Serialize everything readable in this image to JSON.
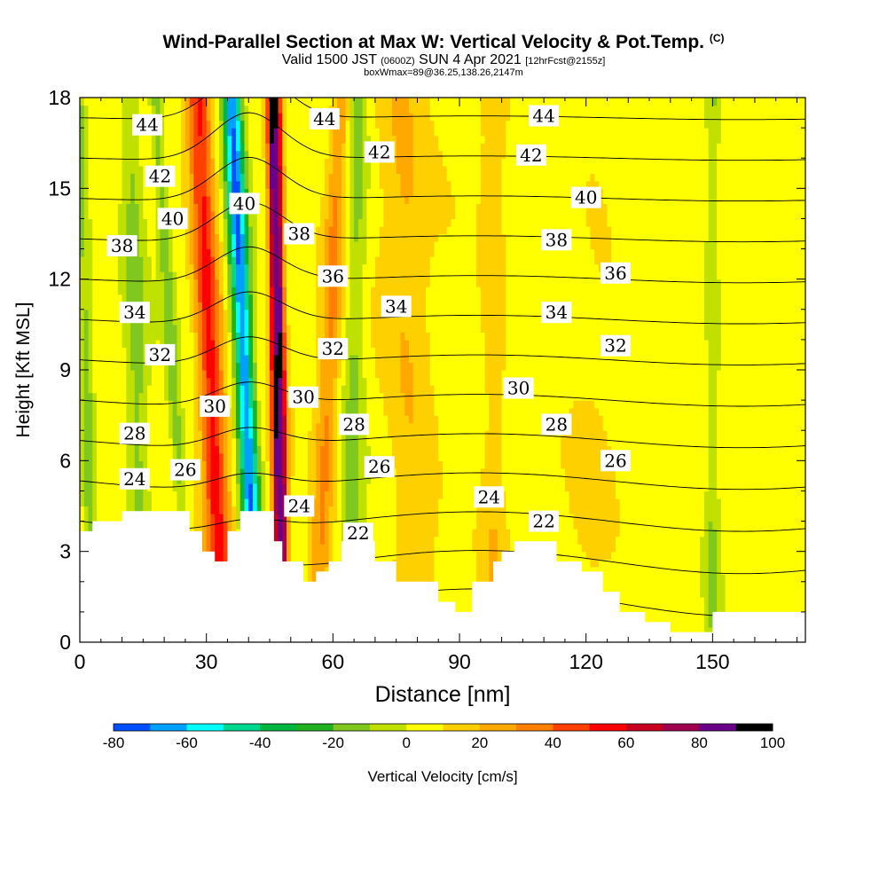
{
  "header": {
    "title": "Wind-Parallel Section at Max W: Vertical Velocity & Pot.Temp.",
    "copyright": "(C)",
    "valid_prefix": "Valid 1500 JST",
    "valid_utc": "(0600Z)",
    "valid_date": "SUN 4 Apr 2021",
    "forecast": "[12hrFcst@2155z]",
    "box_info": "boxWmax=89@36.25,138.26,2147m"
  },
  "colors": {
    "palette": [
      "#0000ff",
      "#0050ff",
      "#00a0ff",
      "#00ffff",
      "#00d890",
      "#00b840",
      "#20b020",
      "#80c820",
      "#c0e000",
      "#ffff00",
      "#ffd000",
      "#ffa800",
      "#ff8000",
      "#ff4000",
      "#ff0000",
      "#c80020",
      "#a00050",
      "#6a0088"
    ],
    "terrain": "#ffffff"
  },
  "chart_data": {
    "type": "heatmap",
    "xlabel": "Distance [nm]",
    "ylabel": "Height [Kft MSL]",
    "xlim": [
      0,
      172
    ],
    "ylim": [
      0,
      18
    ],
    "xticks": [
      0,
      30,
      60,
      90,
      120,
      150
    ],
    "yticks": [
      0,
      3,
      6,
      9,
      12,
      15,
      18
    ],
    "colorbar": {
      "label": "Vertical Velocity [cm/s]",
      "ticks": [
        -80,
        -60,
        -40,
        -20,
        0,
        20,
        40,
        60,
        80,
        100
      ],
      "levels": [
        -80,
        -70,
        -60,
        -50,
        -40,
        -30,
        -20,
        -10,
        0,
        10,
        20,
        30,
        40,
        50,
        60,
        70,
        80,
        90,
        100
      ]
    },
    "velocity_features": [
      {
        "x0": 3,
        "x1": 0,
        "sigma": 1.5,
        "amp": -18
      },
      {
        "x0": 15,
        "x1": 12,
        "sigma": 2.5,
        "amp": -18
      },
      {
        "x0": 26,
        "x1": 18,
        "sigma": 1.5,
        "amp": -20
      },
      {
        "x0": 34,
        "x1": 28,
        "sigma": 3,
        "amp": 48
      },
      {
        "x0": 42,
        "x1": 36,
        "sigma": 2.2,
        "amp": -75
      },
      {
        "x0": 48,
        "x1": 46,
        "sigma": 1.6,
        "amp": 100
      },
      {
        "x0": 56,
        "x1": 62,
        "sigma": 2.5,
        "amp": 26
      },
      {
        "x0": 64,
        "x1": 66,
        "sigma": 2.5,
        "amp": -18
      },
      {
        "x0": 80,
        "x1": 76,
        "sigma": 6,
        "amp": 14
      },
      {
        "x0": 98,
        "x1": 98,
        "sigma": 3,
        "amp": 12
      },
      {
        "x0": 120,
        "x1": 124,
        "sigma": 6,
        "amp": 5
      },
      {
        "x0": 150,
        "x1": 150,
        "sigma": 1.5,
        "amp": -14
      }
    ],
    "terrain_profile": [
      [
        0,
        3.5
      ],
      [
        3,
        3.9
      ],
      [
        10,
        4.2
      ],
      [
        25,
        4.2
      ],
      [
        26,
        3.6
      ],
      [
        29,
        2.9
      ],
      [
        32,
        2.6
      ],
      [
        35,
        3.6
      ],
      [
        38,
        4.2
      ],
      [
        43,
        4.2
      ],
      [
        46,
        3.4
      ],
      [
        48,
        2.6
      ],
      [
        53,
        2.0
      ],
      [
        56,
        2.3
      ],
      [
        59,
        2.7
      ],
      [
        62,
        3.3
      ],
      [
        65,
        3.2
      ],
      [
        70,
        2.7
      ],
      [
        75,
        2.0
      ],
      [
        80,
        1.9
      ],
      [
        85,
        1.3
      ],
      [
        89,
        1.0
      ],
      [
        93,
        2.0
      ],
      [
        98,
        2.6
      ],
      [
        100,
        3.1
      ],
      [
        103,
        3.3
      ],
      [
        107,
        3.2
      ],
      [
        113,
        2.6
      ],
      [
        119,
        2.2
      ],
      [
        124,
        1.6
      ],
      [
        128,
        0.9
      ],
      [
        134,
        0.6
      ],
      [
        140,
        0.3
      ],
      [
        146,
        0.3
      ],
      [
        150,
        0.9
      ],
      [
        156,
        1.0
      ],
      [
        172,
        1.0
      ]
    ],
    "theta_levels": [
      20,
      22,
      24,
      26,
      28,
      30,
      32,
      34,
      36,
      38,
      40,
      42,
      44,
      46
    ],
    "theta_labels": [
      {
        "text": "44",
        "x": 16,
        "y": 17.1
      },
      {
        "text": "42",
        "x": 19,
        "y": 15.4
      },
      {
        "text": "40",
        "x": 22,
        "y": 14.0
      },
      {
        "text": "38",
        "x": 10,
        "y": 13.1
      },
      {
        "text": "34",
        "x": 13,
        "y": 10.9
      },
      {
        "text": "32",
        "x": 19,
        "y": 9.5
      },
      {
        "text": "28",
        "x": 13,
        "y": 6.9
      },
      {
        "text": "24",
        "x": 13,
        "y": 5.4
      },
      {
        "text": "26",
        "x": 25,
        "y": 5.7
      },
      {
        "text": "30",
        "x": 32,
        "y": 7.8
      },
      {
        "text": "40",
        "x": 39,
        "y": 14.5
      },
      {
        "text": "44",
        "x": 58,
        "y": 17.3
      },
      {
        "text": "42",
        "x": 71,
        "y": 16.2
      },
      {
        "text": "38",
        "x": 52,
        "y": 13.5
      },
      {
        "text": "36",
        "x": 60,
        "y": 12.1
      },
      {
        "text": "34",
        "x": 75,
        "y": 11.1
      },
      {
        "text": "32",
        "x": 60,
        "y": 9.7
      },
      {
        "text": "30",
        "x": 53,
        "y": 8.1
      },
      {
        "text": "28",
        "x": 65,
        "y": 7.2
      },
      {
        "text": "26",
        "x": 71,
        "y": 5.8
      },
      {
        "text": "24",
        "x": 52,
        "y": 4.5
      },
      {
        "text": "22",
        "x": 66,
        "y": 3.6
      },
      {
        "text": "44",
        "x": 110,
        "y": 17.4
      },
      {
        "text": "42",
        "x": 107,
        "y": 16.1
      },
      {
        "text": "40",
        "x": 120,
        "y": 14.7
      },
      {
        "text": "38",
        "x": 113,
        "y": 13.3
      },
      {
        "text": "36",
        "x": 127,
        "y": 12.2
      },
      {
        "text": "34",
        "x": 113,
        "y": 10.9
      },
      {
        "text": "32",
        "x": 127,
        "y": 9.8
      },
      {
        "text": "30",
        "x": 104,
        "y": 8.4
      },
      {
        "text": "28",
        "x": 113,
        "y": 7.2
      },
      {
        "text": "26",
        "x": 127,
        "y": 6.0
      },
      {
        "text": "24",
        "x": 97,
        "y": 4.8
      },
      {
        "text": "22",
        "x": 110,
        "y": 4.0
      }
    ]
  }
}
